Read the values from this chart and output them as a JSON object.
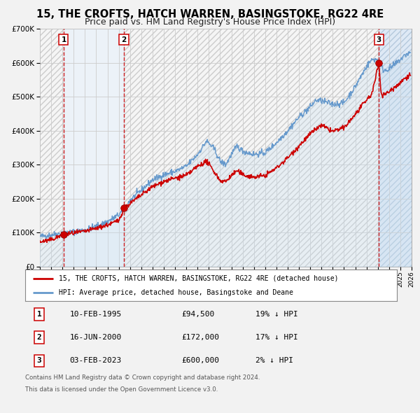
{
  "title": "15, THE CROFTS, HATCH WARREN, BASINGSTOKE, RG22 4RE",
  "subtitle": "Price paid vs. HM Land Registry's House Price Index (HPI)",
  "title_fontsize": 10.5,
  "subtitle_fontsize": 9,
  "background_color": "#f2f2f2",
  "plot_bg_color": "#ffffff",
  "grid_color": "#cccccc",
  "xmin": 1993,
  "xmax": 2026,
  "ymin": 0,
  "ymax": 700000,
  "yticks": [
    0,
    100000,
    200000,
    300000,
    400000,
    500000,
    600000,
    700000
  ],
  "sale_dates": [
    1995.11,
    2000.46,
    2023.09
  ],
  "sale_prices": [
    94500,
    172000,
    600000
  ],
  "sale_labels": [
    "1",
    "2",
    "3"
  ],
  "vline_color": "#cc0000",
  "vline_shading_color": "#ddeeff",
  "vline_shading_alpha": 0.6,
  "hatch_color": "#dddddd",
  "sale_marker_color": "#cc0000",
  "sale_marker_size": 7,
  "legend_label_red": "15, THE CROFTS, HATCH WARREN, BASINGSTOKE, RG22 4RE (detached house)",
  "legend_label_blue": "HPI: Average price, detached house, Basingstoke and Deane",
  "table_rows": [
    {
      "num": "1",
      "date": "10-FEB-1995",
      "price": "£94,500",
      "hpi": "19% ↓ HPI"
    },
    {
      "num": "2",
      "date": "16-JUN-2000",
      "price": "£172,000",
      "hpi": "17% ↓ HPI"
    },
    {
      "num": "3",
      "date": "03-FEB-2023",
      "price": "£600,000",
      "hpi": "2% ↓ HPI"
    }
  ],
  "footnote1": "Contains HM Land Registry data © Crown copyright and database right 2024.",
  "footnote2": "This data is licensed under the Open Government Licence v3.0.",
  "red_line_color": "#cc0000",
  "blue_line_color": "#6699cc",
  "hpi_fill_color": "#c8dff0",
  "hpi_fill_alpha": 0.5
}
